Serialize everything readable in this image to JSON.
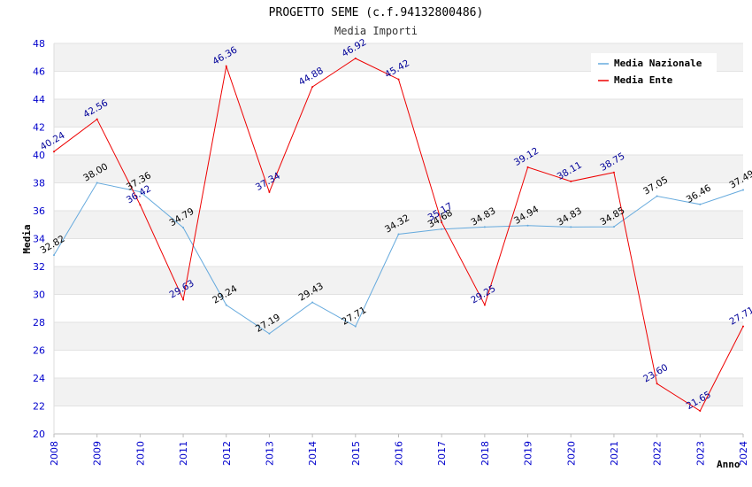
{
  "chart_data": {
    "type": "line",
    "title": "PROGETTO SEME (c.f.94132800486)",
    "subtitle": "Media Importi",
    "xlabel": "Anno",
    "ylabel": "Media",
    "ylim": [
      20,
      48
    ],
    "yticks": [
      "20",
      "22",
      "24",
      "26",
      "28",
      "30",
      "32",
      "34",
      "36",
      "38",
      "40",
      "42",
      "44",
      "46",
      "48"
    ],
    "categories": [
      "2008",
      "2009",
      "2010",
      "2011",
      "2012",
      "2013",
      "2014",
      "2015",
      "2016",
      "2017",
      "2018",
      "2019",
      "2020",
      "2021",
      "2022",
      "2023",
      "2024"
    ],
    "series": [
      {
        "name": "Media Nazionale",
        "color": "#66aadd",
        "label_color": "#000000",
        "values": [
          32.82,
          38.0,
          37.36,
          34.79,
          29.24,
          27.19,
          29.43,
          27.71,
          34.32,
          34.68,
          34.83,
          34.94,
          34.83,
          34.85,
          37.05,
          36.46,
          37.49
        ],
        "labels": [
          "32.82",
          "38.00",
          "37.36",
          "34.79",
          "29.24",
          "27.19",
          "29.43",
          "27.71",
          "34.32",
          "34.68",
          "34.83",
          "34.94",
          "34.83",
          "34.85",
          "37.05",
          "36.46",
          "37.49"
        ]
      },
      {
        "name": "Media Ente",
        "color": "#ee0000",
        "label_color": "#000099",
        "values": [
          40.24,
          42.56,
          36.42,
          29.63,
          46.36,
          37.34,
          44.88,
          46.92,
          45.42,
          35.17,
          29.25,
          39.12,
          38.11,
          38.75,
          23.6,
          21.65,
          27.71
        ],
        "labels": [
          "40.24",
          "42.56",
          "36.42",
          "29.63",
          "46.36",
          "37.34",
          "44.88",
          "46.92",
          "45.42",
          "35.17",
          "29.25",
          "39.12",
          "38.11",
          "38.75",
          "23.60",
          "21.65",
          "27.71"
        ]
      }
    ],
    "grid": true,
    "legend": "top-right"
  }
}
